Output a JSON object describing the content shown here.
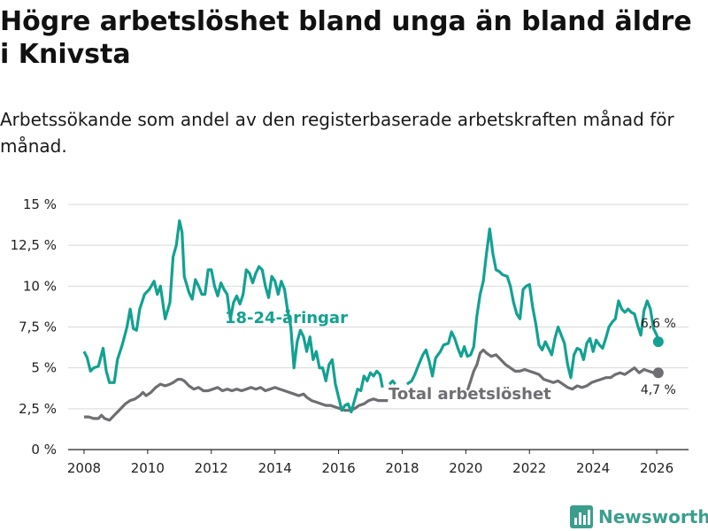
{
  "chart_data": {
    "type": "line",
    "title": "Högre arbetslöshet bland unga än bland äldre i Knivsta",
    "subtitle": "Arbetssökande som andel av den registerbaserade arbetskraften månad för månad.",
    "ylim": [
      0,
      15
    ],
    "xlim": [
      2007.5,
      2027.0
    ],
    "y_ticks": [
      0,
      2.5,
      5,
      7.5,
      10,
      12.5,
      15
    ],
    "y_tick_labels": [
      "0 %",
      "2,5 %",
      "5 %",
      "7,5 %",
      "10 %",
      "12,5 %",
      "15 %"
    ],
    "x_ticks": [
      2008,
      2010,
      2012,
      2014,
      2016,
      2018,
      2020,
      2022,
      2024,
      2026
    ],
    "x_tick_labels": [
      "2008",
      "2010",
      "2012",
      "2014",
      "2016",
      "2018",
      "2020",
      "2022",
      "2024",
      "2026"
    ],
    "colors": {
      "youth": "#13a191",
      "total": "#6e6e73",
      "grid": "#d9d9d9"
    },
    "series": [
      {
        "name": "18-24-åringar",
        "color": "#13a191",
        "end_label": "6,6 %",
        "points": [
          [
            2008.0,
            6.0
          ],
          [
            2008.1,
            5.6
          ],
          [
            2008.2,
            4.8
          ],
          [
            2008.3,
            5.0
          ],
          [
            2008.45,
            5.1
          ],
          [
            2008.6,
            6.2
          ],
          [
            2008.7,
            4.8
          ],
          [
            2008.8,
            4.1
          ],
          [
            2008.95,
            4.1
          ],
          [
            2009.05,
            5.5
          ],
          [
            2009.2,
            6.4
          ],
          [
            2009.35,
            7.5
          ],
          [
            2009.45,
            8.6
          ],
          [
            2009.55,
            7.4
          ],
          [
            2009.65,
            7.3
          ],
          [
            2009.75,
            8.6
          ],
          [
            2009.9,
            9.5
          ],
          [
            2010.05,
            9.8
          ],
          [
            2010.2,
            10.3
          ],
          [
            2010.3,
            9.5
          ],
          [
            2010.4,
            10.0
          ],
          [
            2010.55,
            8.0
          ],
          [
            2010.7,
            9.0
          ],
          [
            2010.8,
            11.8
          ],
          [
            2010.9,
            12.5
          ],
          [
            2011.0,
            14.0
          ],
          [
            2011.08,
            13.3
          ],
          [
            2011.15,
            10.6
          ],
          [
            2011.3,
            9.6
          ],
          [
            2011.4,
            9.2
          ],
          [
            2011.5,
            10.4
          ],
          [
            2011.6,
            10.0
          ],
          [
            2011.7,
            9.5
          ],
          [
            2011.8,
            9.5
          ],
          [
            2011.9,
            11.0
          ],
          [
            2012.0,
            11.0
          ],
          [
            2012.1,
            10.0
          ],
          [
            2012.2,
            9.4
          ],
          [
            2012.3,
            10.2
          ],
          [
            2012.4,
            9.8
          ],
          [
            2012.5,
            9.5
          ],
          [
            2012.6,
            8.0
          ],
          [
            2012.7,
            9.0
          ],
          [
            2012.8,
            9.4
          ],
          [
            2012.9,
            8.9
          ],
          [
            2013.0,
            9.5
          ],
          [
            2013.1,
            11.0
          ],
          [
            2013.2,
            10.8
          ],
          [
            2013.3,
            10.2
          ],
          [
            2013.4,
            10.8
          ],
          [
            2013.5,
            11.2
          ],
          [
            2013.6,
            11.0
          ],
          [
            2013.7,
            10.0
          ],
          [
            2013.8,
            9.3
          ],
          [
            2013.9,
            10.6
          ],
          [
            2014.0,
            10.3
          ],
          [
            2014.1,
            9.5
          ],
          [
            2014.2,
            10.3
          ],
          [
            2014.3,
            9.8
          ],
          [
            2014.4,
            8.5
          ],
          [
            2014.5,
            7.5
          ],
          [
            2014.6,
            5.0
          ],
          [
            2014.7,
            6.6
          ],
          [
            2014.8,
            7.3
          ],
          [
            2014.9,
            6.9
          ],
          [
            2015.0,
            6.0
          ],
          [
            2015.1,
            6.9
          ],
          [
            2015.2,
            5.5
          ],
          [
            2015.3,
            6.0
          ],
          [
            2015.4,
            5.0
          ],
          [
            2015.5,
            5.0
          ],
          [
            2015.6,
            4.2
          ],
          [
            2015.7,
            5.2
          ],
          [
            2015.8,
            5.5
          ],
          [
            2015.9,
            4.0
          ],
          [
            2016.0,
            3.2
          ],
          [
            2016.1,
            2.4
          ],
          [
            2016.2,
            2.7
          ],
          [
            2016.3,
            2.8
          ],
          [
            2016.4,
            2.3
          ],
          [
            2016.5,
            3.0
          ],
          [
            2016.6,
            3.7
          ],
          [
            2016.7,
            3.6
          ],
          [
            2016.8,
            4.5
          ],
          [
            2016.9,
            4.2
          ],
          [
            2017.0,
            4.7
          ],
          [
            2017.1,
            4.5
          ],
          [
            2017.2,
            4.8
          ],
          [
            2017.3,
            4.6
          ],
          [
            2017.38,
            3.8
          ]
        ],
        "points_2": [
          [
            2017.6,
            4.0
          ],
          [
            2017.7,
            4.2
          ],
          [
            2017.78,
            4.0
          ]
        ],
        "points_3": [
          [
            2018.15,
            4.0
          ],
          [
            2018.3,
            4.2
          ],
          [
            2018.4,
            4.6
          ],
          [
            2018.5,
            5.1
          ],
          [
            2018.65,
            5.8
          ],
          [
            2018.75,
            6.1
          ],
          [
            2018.85,
            5.4
          ],
          [
            2018.95,
            4.5
          ],
          [
            2019.05,
            5.6
          ],
          [
            2019.2,
            6.0
          ],
          [
            2019.3,
            6.4
          ],
          [
            2019.45,
            6.5
          ],
          [
            2019.55,
            7.2
          ],
          [
            2019.65,
            6.8
          ],
          [
            2019.75,
            6.2
          ],
          [
            2019.85,
            5.7
          ],
          [
            2019.95,
            6.3
          ],
          [
            2020.05,
            5.7
          ],
          [
            2020.15,
            5.8
          ],
          [
            2020.25,
            6.3
          ],
          [
            2020.35,
            8.2
          ],
          [
            2020.45,
            9.5
          ],
          [
            2020.55,
            10.3
          ],
          [
            2020.65,
            12.0
          ],
          [
            2020.75,
            13.5
          ],
          [
            2020.85,
            12.0
          ],
          [
            2020.95,
            11.0
          ],
          [
            2021.05,
            10.9
          ],
          [
            2021.15,
            10.7
          ],
          [
            2021.3,
            10.6
          ],
          [
            2021.4,
            10.0
          ],
          [
            2021.5,
            9.0
          ],
          [
            2021.6,
            8.3
          ],
          [
            2021.7,
            8.0
          ],
          [
            2021.8,
            9.8
          ],
          [
            2021.9,
            10.0
          ],
          [
            2022.0,
            10.1
          ],
          [
            2022.1,
            8.7
          ],
          [
            2022.2,
            7.7
          ],
          [
            2022.3,
            6.4
          ],
          [
            2022.4,
            6.1
          ],
          [
            2022.5,
            6.6
          ],
          [
            2022.6,
            6.2
          ],
          [
            2022.7,
            5.8
          ],
          [
            2022.8,
            6.8
          ],
          [
            2022.9,
            7.5
          ],
          [
            2023.0,
            7.0
          ],
          [
            2023.1,
            6.5
          ],
          [
            2023.2,
            5.2
          ],
          [
            2023.3,
            4.4
          ],
          [
            2023.4,
            5.8
          ],
          [
            2023.5,
            6.2
          ],
          [
            2023.6,
            6.1
          ],
          [
            2023.7,
            5.5
          ],
          [
            2023.8,
            6.5
          ],
          [
            2023.9,
            6.8
          ],
          [
            2024.0,
            6.0
          ],
          [
            2024.1,
            6.7
          ],
          [
            2024.2,
            6.4
          ],
          [
            2024.3,
            6.2
          ],
          [
            2024.4,
            6.8
          ],
          [
            2024.5,
            7.5
          ],
          [
            2024.6,
            7.8
          ],
          [
            2024.7,
            8.0
          ],
          [
            2024.8,
            9.1
          ],
          [
            2024.9,
            8.6
          ],
          [
            2025.0,
            8.4
          ],
          [
            2025.1,
            8.6
          ],
          [
            2025.2,
            8.4
          ],
          [
            2025.3,
            8.3
          ],
          [
            2025.4,
            7.6
          ],
          [
            2025.5,
            7.0
          ],
          [
            2025.6,
            8.5
          ],
          [
            2025.7,
            9.1
          ],
          [
            2025.8,
            8.6
          ],
          [
            2025.9,
            7.4
          ],
          [
            2026.0,
            7.0
          ],
          [
            2026.05,
            6.6
          ]
        ]
      },
      {
        "name": "Total arbetslöshet",
        "color": "#6e6e73",
        "end_label": "4,7 %",
        "points": [
          [
            2008.0,
            2.0
          ],
          [
            2008.15,
            2.0
          ],
          [
            2008.3,
            1.9
          ],
          [
            2008.45,
            1.9
          ],
          [
            2008.55,
            2.1
          ],
          [
            2008.65,
            1.9
          ],
          [
            2008.8,
            1.8
          ],
          [
            2008.95,
            2.1
          ],
          [
            2009.1,
            2.4
          ],
          [
            2009.3,
            2.8
          ],
          [
            2009.45,
            3.0
          ],
          [
            2009.6,
            3.1
          ],
          [
            2009.75,
            3.3
          ],
          [
            2009.85,
            3.5
          ],
          [
            2009.95,
            3.3
          ],
          [
            2010.1,
            3.5
          ],
          [
            2010.25,
            3.8
          ],
          [
            2010.4,
            4.0
          ],
          [
            2010.55,
            3.9
          ],
          [
            2010.7,
            4.0
          ],
          [
            2010.8,
            4.1
          ],
          [
            2010.95,
            4.3
          ],
          [
            2011.05,
            4.3
          ],
          [
            2011.15,
            4.2
          ],
          [
            2011.3,
            3.9
          ],
          [
            2011.45,
            3.7
          ],
          [
            2011.6,
            3.8
          ],
          [
            2011.75,
            3.6
          ],
          [
            2011.9,
            3.6
          ],
          [
            2012.05,
            3.7
          ],
          [
            2012.2,
            3.8
          ],
          [
            2012.35,
            3.6
          ],
          [
            2012.5,
            3.7
          ],
          [
            2012.65,
            3.6
          ],
          [
            2012.8,
            3.7
          ],
          [
            2012.95,
            3.6
          ],
          [
            2013.1,
            3.7
          ],
          [
            2013.25,
            3.8
          ],
          [
            2013.4,
            3.7
          ],
          [
            2013.55,
            3.8
          ],
          [
            2013.7,
            3.6
          ],
          [
            2013.85,
            3.7
          ],
          [
            2014.0,
            3.8
          ],
          [
            2014.15,
            3.7
          ],
          [
            2014.3,
            3.6
          ],
          [
            2014.45,
            3.5
          ],
          [
            2014.6,
            3.4
          ],
          [
            2014.75,
            3.3
          ],
          [
            2014.9,
            3.4
          ],
          [
            2015.0,
            3.2
          ],
          [
            2015.15,
            3.0
          ],
          [
            2015.3,
            2.9
          ],
          [
            2015.45,
            2.8
          ],
          [
            2015.6,
            2.7
          ],
          [
            2015.75,
            2.7
          ],
          [
            2015.9,
            2.6
          ],
          [
            2016.05,
            2.5
          ],
          [
            2016.2,
            2.4
          ],
          [
            2016.35,
            2.4
          ],
          [
            2016.5,
            2.5
          ],
          [
            2016.65,
            2.7
          ],
          [
            2016.8,
            2.8
          ],
          [
            2016.95,
            3.0
          ],
          [
            2017.1,
            3.1
          ],
          [
            2017.25,
            3.0
          ],
          [
            2017.4,
            3.0
          ],
          [
            2017.55,
            3.0
          ]
        ],
        "points_2": [
          [
            2017.55,
            2.9
          ]
        ],
        "points_3": [
          [
            2019.95,
            3.3
          ],
          [
            2020.05,
            3.6
          ],
          [
            2020.15,
            4.2
          ],
          [
            2020.25,
            4.8
          ],
          [
            2020.35,
            5.2
          ],
          [
            2020.45,
            5.9
          ],
          [
            2020.55,
            6.1
          ],
          [
            2020.65,
            5.9
          ],
          [
            2020.8,
            5.7
          ],
          [
            2020.95,
            5.8
          ],
          [
            2021.1,
            5.5
          ],
          [
            2021.25,
            5.2
          ],
          [
            2021.4,
            5.0
          ],
          [
            2021.55,
            4.8
          ],
          [
            2021.7,
            4.8
          ],
          [
            2021.85,
            4.9
          ],
          [
            2022.0,
            4.8
          ],
          [
            2022.15,
            4.7
          ],
          [
            2022.3,
            4.6
          ],
          [
            2022.45,
            4.3
          ],
          [
            2022.6,
            4.2
          ],
          [
            2022.75,
            4.1
          ],
          [
            2022.9,
            4.2
          ],
          [
            2023.05,
            4.0
          ],
          [
            2023.2,
            3.8
          ],
          [
            2023.35,
            3.7
          ],
          [
            2023.5,
            3.9
          ],
          [
            2023.65,
            3.8
          ],
          [
            2023.8,
            3.9
          ],
          [
            2023.95,
            4.1
          ],
          [
            2024.1,
            4.2
          ],
          [
            2024.25,
            4.3
          ],
          [
            2024.4,
            4.4
          ],
          [
            2024.55,
            4.4
          ],
          [
            2024.7,
            4.6
          ],
          [
            2024.85,
            4.7
          ],
          [
            2025.0,
            4.6
          ],
          [
            2025.15,
            4.8
          ],
          [
            2025.3,
            5.0
          ],
          [
            2025.45,
            4.7
          ],
          [
            2025.6,
            4.9
          ],
          [
            2025.75,
            4.8
          ],
          [
            2025.9,
            4.7
          ],
          [
            2026.05,
            4.7
          ]
        ]
      }
    ]
  },
  "branding": {
    "logo_text": "Newsworthy"
  }
}
